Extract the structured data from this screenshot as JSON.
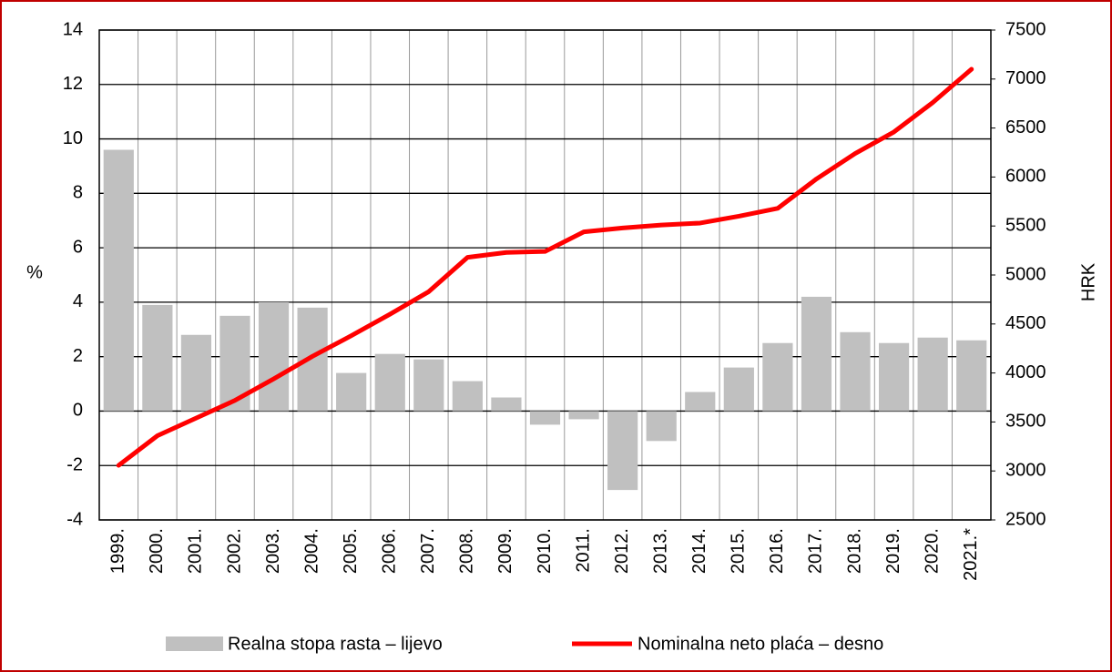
{
  "chart_data": {
    "type": "bar+line",
    "categories": [
      "1999.",
      "2000.",
      "2001.",
      "2002.",
      "2003.",
      "2004.",
      "2005.",
      "2006.",
      "2007.",
      "2008.",
      "2009.",
      "2010.",
      "2011.",
      "2012.",
      "2013.",
      "2014.",
      "2015.",
      "2016.",
      "2017.",
      "2018.",
      "2019.",
      "2020.",
      "2021.*"
    ],
    "series": [
      {
        "name": "Realna stopa rasta – lijevo",
        "color": "#c0c0c0",
        "type": "bar",
        "values": [
          9.6,
          3.9,
          2.8,
          3.5,
          4.0,
          3.8,
          1.4,
          2.1,
          1.9,
          1.1,
          0.5,
          -0.5,
          -0.3,
          -2.9,
          -1.1,
          0.7,
          1.6,
          2.5,
          4.2,
          2.9,
          2.5,
          2.7,
          2.6
        ]
      },
      {
        "name": "Nominalna neto plaća – desno",
        "color": "#ff0000",
        "type": "line",
        "axis": "y2",
        "values": [
          3057,
          3360,
          3540,
          3720,
          3940,
          4170,
          4380,
          4600,
          4830,
          5180,
          5230,
          5240,
          5440,
          5480,
          5510,
          5530,
          5600,
          5680,
          5980,
          6240,
          6460,
          6760,
          7100
        ]
      }
    ],
    "ylabel": "%",
    "y2label": "HRK",
    "ylim": [
      -4,
      14
    ],
    "yticks": [
      -4,
      -2,
      0,
      2,
      4,
      6,
      8,
      10,
      12,
      14
    ],
    "y2lim": [
      2500,
      7500
    ],
    "y2ticks": [
      2500,
      3000,
      3500,
      4000,
      4500,
      5000,
      5500,
      6000,
      6500,
      7000,
      7500
    ],
    "grid": true,
    "legend": "bottom"
  }
}
